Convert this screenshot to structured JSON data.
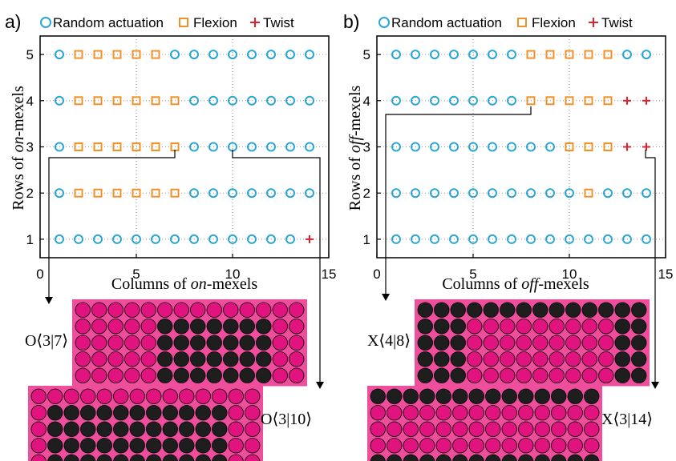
{
  "chart_data": [
    {
      "type": "scatter",
      "panel_label": "a)",
      "legend_position": "top",
      "xlabel_parts": [
        "Columns of ",
        "on",
        "-mexels"
      ],
      "ylabel_parts": [
        "Rows of ",
        "on",
        "-mexels"
      ],
      "xlim": [
        0,
        15
      ],
      "ylim": [
        0.6,
        5.4
      ],
      "x_ticks": [
        "0",
        "5",
        "10",
        "15"
      ],
      "y_ticks": [
        "1",
        "2",
        "3",
        "4",
        "5"
      ],
      "grid": true,
      "series": [
        {
          "name": "Random actuation",
          "marker": "circle",
          "color": "#2aa6d6"
        },
        {
          "name": "Flexion",
          "marker": "square",
          "color": "#f0922a"
        },
        {
          "name": "Twist",
          "marker": "plus",
          "color": "#e0202a"
        }
      ],
      "rows": [
        {
          "y": 5,
          "marks": "RFFFFFRRRRRRRR"
        },
        {
          "y": 4,
          "marks": "RFFFFFFRRRRRRR"
        },
        {
          "y": 3,
          "marks": "RFFFFFFRRRRRRR"
        },
        {
          "y": 2,
          "marks": "RFFFFFFRRRRRRR"
        },
        {
          "y": 1,
          "marks": "RRRRRRRRRRRRRT"
        }
      ],
      "callouts": [
        {
          "label": "O⟨3|7⟩",
          "point": [
            7,
            3
          ],
          "grid_rows": 5,
          "grid_cols": 14,
          "black_rows": [
            2,
            5
          ],
          "black_cols": [
            6,
            12
          ]
        },
        {
          "label": "O⟨3|10⟩",
          "point": [
            10,
            3
          ],
          "grid_rows": 5,
          "grid_cols": 14,
          "black_rows": [
            2,
            5
          ],
          "black_cols": [
            2,
            12
          ]
        }
      ]
    },
    {
      "type": "scatter",
      "panel_label": "b)",
      "legend_position": "top",
      "xlabel_parts": [
        "Columns of ",
        "off",
        "-mexels"
      ],
      "ylabel_parts": [
        "Rows of ",
        "off",
        "-mexels"
      ],
      "xlim": [
        0,
        15
      ],
      "ylim": [
        0.6,
        5.4
      ],
      "x_ticks": [
        "0",
        "5",
        "10",
        "15"
      ],
      "y_ticks": [
        "1",
        "2",
        "3",
        "4",
        "5"
      ],
      "grid": true,
      "series": [
        {
          "name": "Random actuation",
          "marker": "circle",
          "color": "#2aa6d6"
        },
        {
          "name": "Flexion",
          "marker": "square",
          "color": "#f0922a"
        },
        {
          "name": "Twist",
          "marker": "plus",
          "color": "#e0202a"
        }
      ],
      "rows": [
        {
          "y": 5,
          "marks": "RRRRRRRFFFFFRR"
        },
        {
          "y": 4,
          "marks": "RRRRRRRFFFFFTT"
        },
        {
          "y": 3,
          "marks": "RRRRRRRRRFFFTT"
        },
        {
          "y": 2,
          "marks": "RRRRRRRRRRFRRR"
        },
        {
          "y": 1,
          "marks": "RRRRRRRRRRRRRR"
        }
      ],
      "callouts": [
        {
          "label": "X⟨4|8⟩",
          "point": [
            8,
            4
          ],
          "grid_rows": 5,
          "grid_cols": 14,
          "black_rows": [
            1,
            4
          ],
          "black_cols": [
            1,
            3,
            13,
            14
          ],
          "black_top_full": true
        },
        {
          "label": "X⟨3|14⟩",
          "point": [
            14,
            3
          ],
          "grid_rows": 5,
          "grid_cols": 14,
          "black_rows": [
            1
          ],
          "black_cols": [],
          "black_top_full": true,
          "black_bottom_full": true
        }
      ]
    }
  ],
  "colors": {
    "magenta": "#e0137f",
    "magenta_bg": "#ee4e9c",
    "mexel_black": "#1e1e1e"
  }
}
